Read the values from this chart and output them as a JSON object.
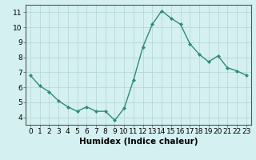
{
  "x": [
    0,
    1,
    2,
    3,
    4,
    5,
    6,
    7,
    8,
    9,
    10,
    11,
    12,
    13,
    14,
    15,
    16,
    17,
    18,
    19,
    20,
    21,
    22,
    23
  ],
  "y": [
    6.8,
    6.1,
    5.7,
    5.1,
    4.7,
    4.4,
    4.7,
    4.4,
    4.4,
    3.8,
    4.6,
    6.5,
    8.7,
    10.2,
    11.1,
    10.6,
    10.2,
    8.9,
    8.2,
    7.7,
    8.1,
    7.3,
    7.1,
    6.8
  ],
  "xlabel": "Humidex (Indice chaleur)",
  "ylim": [
    3.5,
    11.5
  ],
  "xlim": [
    -0.5,
    23.5
  ],
  "yticks": [
    4,
    5,
    6,
    7,
    8,
    9,
    10,
    11
  ],
  "xticks": [
    0,
    1,
    2,
    3,
    4,
    5,
    6,
    7,
    8,
    9,
    10,
    11,
    12,
    13,
    14,
    15,
    16,
    17,
    18,
    19,
    20,
    21,
    22,
    23
  ],
  "line_color": "#2e8b7a",
  "marker_color": "#2e8b7a",
  "bg_color": "#d4f0f0",
  "grid_color": "#b8d8d8",
  "axis_label_fontsize": 7.5,
  "tick_fontsize": 6.5
}
